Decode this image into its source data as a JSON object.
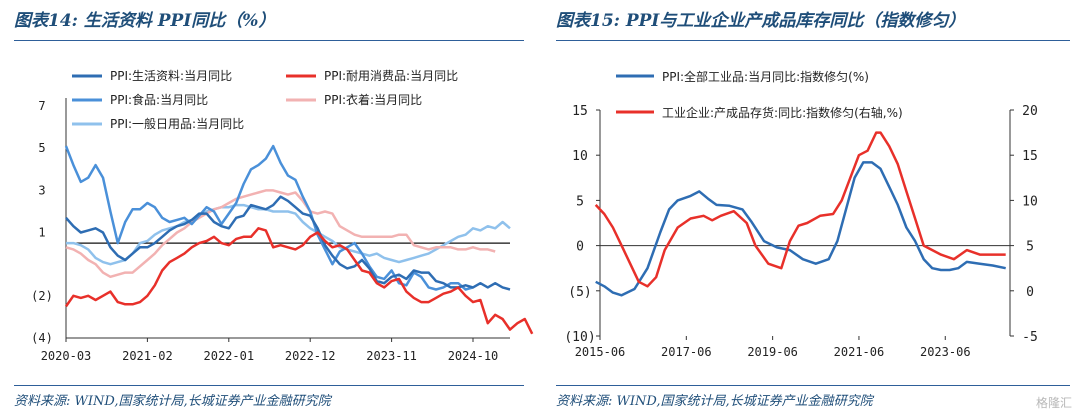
{
  "left_panel": {
    "title": "图表14: 生活资料 PPI同比（%）",
    "source": "资料来源: WIND,国家统计局,长城证券产业金融研究院"
  },
  "right_panel": {
    "title": "图表15: PPI与工业企业产成品库存同比（指数修匀）",
    "source": "资料来源: WIND,国家统计局,长城证券产业金融研究院"
  },
  "watermark": "格隆汇",
  "chart_data": [
    {
      "type": "line",
      "ylim": [
        -4,
        7
      ],
      "yticks": [
        7,
        5,
        3,
        1,
        -2,
        -4
      ],
      "ytick_labels": [
        "7",
        "5",
        "3",
        "1",
        "(2)",
        "(4)"
      ],
      "xlim": [
        0,
        60
      ],
      "xtick_positions": [
        0,
        11,
        22,
        33,
        44,
        55
      ],
      "xtick_labels": [
        "2020-03",
        "2021-02",
        "2022-01",
        "2022-12",
        "2023-11",
        "2024-10"
      ],
      "zero_line": 0.5,
      "grid": false,
      "legend": "top",
      "series": [
        {
          "name": "PPI:生活资料:当月同比",
          "color": "#2e6db3",
          "width": 2.5,
          "values": [
            1.7,
            1.3,
            1.0,
            1.1,
            1.2,
            1.0,
            0.3,
            -0.1,
            -0.3,
            0.0,
            0.3,
            0.3,
            0.5,
            0.8,
            1.1,
            1.3,
            1.4,
            1.6,
            1.9,
            1.9,
            1.5,
            1.3,
            1.2,
            1.7,
            1.8,
            2.3,
            2.2,
            2.1,
            2.3,
            2.7,
            2.5,
            2.2,
            1.9,
            1.8,
            1.2,
            0.4,
            -0.1,
            -0.5,
            -0.7,
            -0.6,
            -0.3,
            -0.7,
            -1.3,
            -1.4,
            -1.1,
            -1.0,
            -1.2,
            -0.8,
            -0.9,
            -0.9,
            -1.3,
            -1.4,
            -1.6,
            -1.6,
            -1.5,
            -1.6,
            -1.4,
            -1.6,
            -1.4,
            -1.6,
            -1.7
          ]
        },
        {
          "name": "PPI:耐用消费品:当月同比",
          "color": "#e8302a",
          "width": 2.5,
          "values": [
            -2.5,
            -2.0,
            -2.1,
            -2.0,
            -2.2,
            -2.0,
            -1.8,
            -2.3,
            -2.4,
            -2.4,
            -2.3,
            -2.0,
            -1.5,
            -0.8,
            -0.4,
            -0.2,
            0.0,
            0.3,
            0.5,
            0.6,
            0.8,
            0.5,
            0.4,
            0.7,
            0.8,
            0.8,
            1.2,
            1.1,
            0.3,
            0.4,
            0.3,
            0.2,
            0.4,
            0.8,
            1.0,
            0.6,
            0.3,
            0.4,
            0.2,
            -0.3,
            -0.8,
            -0.9,
            -1.4,
            -1.6,
            -1.3,
            -1.2,
            -1.8,
            -2.1,
            -2.3,
            -2.3,
            -2.1,
            -1.9,
            -1.8,
            -1.6,
            -2.0,
            -2.3,
            -2.2,
            -3.3,
            -2.9,
            -3.1,
            -3.6,
            -3.3,
            -3.1,
            -3.8
          ]
        },
        {
          "name": "PPI:食品:当月同比",
          "color": "#4a90d9",
          "width": 2.5,
          "values": [
            5.1,
            4.2,
            3.4,
            3.6,
            4.2,
            3.6,
            2.0,
            0.5,
            1.5,
            2.1,
            2.1,
            2.4,
            2.2,
            1.7,
            1.5,
            1.6,
            1.7,
            1.4,
            1.8,
            2.2,
            2.0,
            1.4,
            1.9,
            2.4,
            3.3,
            4.0,
            4.2,
            4.5,
            5.1,
            4.3,
            3.7,
            3.5,
            2.7,
            2.0,
            0.9,
            0.2,
            -0.5,
            0.1,
            0.3,
            0.5,
            0.0,
            -0.6,
            -1.1,
            -1.2,
            -0.8,
            -1.4,
            -1.5,
            -0.9,
            -1.1,
            -1.6,
            -1.7,
            -1.6,
            -1.4,
            -1.4,
            -1.7,
            -1.6
          ]
        },
        {
          "name": "PPI:衣着:当月同比",
          "color": "#f2b2b2",
          "width": 2.5,
          "values": [
            0.3,
            0.2,
            0.0,
            -0.3,
            -0.5,
            -0.9,
            -1.1,
            -1.0,
            -0.9,
            -0.9,
            -0.6,
            -0.3,
            0.0,
            0.4,
            0.7,
            1.0,
            1.2,
            1.5,
            1.7,
            1.9,
            2.1,
            2.2,
            2.4,
            2.6,
            2.7,
            2.8,
            2.9,
            3.0,
            3.0,
            2.9,
            2.8,
            2.9,
            2.5,
            2.0,
            1.9,
            2.0,
            1.9,
            1.3,
            1.1,
            0.9,
            0.8,
            0.8,
            0.8,
            0.8,
            0.8,
            0.9,
            0.9,
            0.4,
            0.3,
            0.2,
            0.3,
            0.3,
            0.3,
            0.2,
            0.2,
            0.3,
            0.2,
            0.2,
            0.1
          ]
        },
        {
          "name": "PPI:一般日用品:当月同比",
          "color": "#8fc1ec",
          "width": 2.5,
          "values": [
            0.5,
            0.5,
            0.4,
            0.2,
            -0.2,
            -0.4,
            -0.5,
            -0.4,
            -0.3,
            0.0,
            0.5,
            0.6,
            0.9,
            1.1,
            1.2,
            1.3,
            1.5,
            1.6,
            1.8,
            2.0,
            2.1,
            2.2,
            2.2,
            2.3,
            2.3,
            2.2,
            2.1,
            2.1,
            2.0,
            2.0,
            2.0,
            1.9,
            1.5,
            1.2,
            1.0,
            0.8,
            0.6,
            0.3,
            0.2,
            0.1,
            0.0,
            -0.1,
            0.0,
            -0.2,
            -0.3,
            -0.4,
            -0.3,
            -0.2,
            -0.1,
            0.0,
            0.2,
            0.4,
            0.6,
            0.8,
            0.9,
            1.2,
            1.1,
            1.3,
            1.2,
            1.5,
            1.2
          ]
        }
      ]
    },
    {
      "type": "line",
      "ylim_left": [
        -10,
        15
      ],
      "ylim_right": [
        -5,
        20
      ],
      "yticks_left": [
        15,
        10,
        5,
        0,
        -5,
        -10
      ],
      "ytick_labels_left": [
        "15",
        "10",
        "5",
        "0",
        "(5)",
        "(10)"
      ],
      "yticks_right": [
        20,
        15,
        10,
        5,
        0,
        -5
      ],
      "ytick_labels_right": [
        "20",
        "15",
        "10",
        "5",
        "0",
        "-5"
      ],
      "xlim": [
        2015.5,
        2025.0
      ],
      "xtick_positions": [
        2015.5,
        2017.5,
        2019.5,
        2021.5,
        2023.5
      ],
      "xtick_labels": [
        "2015-06",
        "2017-06",
        "2019-06",
        "2021-06",
        "2023-06"
      ],
      "grid": false,
      "legend": "top-left",
      "series": [
        {
          "name": "PPI:全部工业品:当月同比:指数修匀(%)",
          "color": "#2e6db3",
          "width": 2.5,
          "axis": "left",
          "x": [
            2015.4,
            2015.6,
            2015.8,
            2016.0,
            2016.3,
            2016.6,
            2016.9,
            2017.1,
            2017.3,
            2017.6,
            2017.8,
            2018.0,
            2018.2,
            2018.5,
            2018.8,
            2019.0,
            2019.3,
            2019.6,
            2019.9,
            2020.2,
            2020.5,
            2020.8,
            2021.0,
            2021.2,
            2021.4,
            2021.6,
            2021.8,
            2022.0,
            2022.2,
            2022.4,
            2022.6,
            2022.8,
            2023.0,
            2023.2,
            2023.4,
            2023.6,
            2023.8,
            2024.0,
            2024.3,
            2024.6,
            2024.9
          ],
          "y": [
            -4.0,
            -4.5,
            -5.2,
            -5.5,
            -4.8,
            -2.5,
            1.5,
            4.0,
            5.0,
            5.5,
            6.0,
            5.2,
            4.5,
            4.4,
            4.0,
            2.7,
            0.5,
            -0.2,
            -0.5,
            -1.5,
            -2.0,
            -1.5,
            0.5,
            4.0,
            7.5,
            9.2,
            9.2,
            8.5,
            6.5,
            4.5,
            2.0,
            0.5,
            -1.5,
            -2.5,
            -2.7,
            -2.7,
            -2.5,
            -1.8,
            -2.0,
            -2.2,
            -2.5
          ]
        },
        {
          "name": "工业企业:产成品存货:同比:指数修匀(右轴,%)",
          "color": "#e8302a",
          "width": 2.5,
          "axis": "right",
          "x": [
            2015.4,
            2015.6,
            2015.8,
            2016.0,
            2016.2,
            2016.4,
            2016.6,
            2016.8,
            2017.0,
            2017.3,
            2017.6,
            2017.9,
            2018.1,
            2018.3,
            2018.6,
            2018.9,
            2019.1,
            2019.4,
            2019.7,
            2019.9,
            2020.1,
            2020.3,
            2020.6,
            2020.9,
            2021.1,
            2021.3,
            2021.5,
            2021.7,
            2021.9,
            2022.0,
            2022.2,
            2022.4,
            2022.6,
            2022.8,
            2023.0,
            2023.2,
            2023.4,
            2023.7,
            2024.0,
            2024.3,
            2024.6,
            2024.9
          ],
          "y": [
            9.5,
            8.5,
            7.0,
            5.0,
            3.0,
            1.0,
            0.5,
            1.5,
            4.5,
            7.0,
            8.0,
            8.3,
            7.8,
            8.3,
            8.8,
            7.5,
            5.0,
            3.0,
            2.5,
            5.5,
            7.2,
            7.5,
            8.3,
            8.5,
            10.0,
            12.5,
            15.0,
            15.5,
            17.5,
            17.5,
            16.0,
            14.0,
            11.0,
            8.0,
            5.0,
            4.5,
            4.0,
            3.5,
            4.5,
            4.0,
            4.0,
            4.0
          ]
        }
      ]
    }
  ]
}
